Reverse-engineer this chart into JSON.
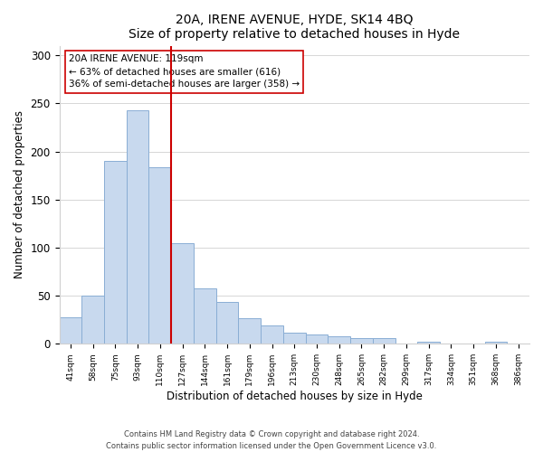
{
  "title": "20A, IRENE AVENUE, HYDE, SK14 4BQ",
  "subtitle": "Size of property relative to detached houses in Hyde",
  "xlabel": "Distribution of detached houses by size in Hyde",
  "ylabel": "Number of detached properties",
  "categories": [
    "41sqm",
    "58sqm",
    "75sqm",
    "93sqm",
    "110sqm",
    "127sqm",
    "144sqm",
    "161sqm",
    "179sqm",
    "196sqm",
    "213sqm",
    "230sqm",
    "248sqm",
    "265sqm",
    "282sqm",
    "299sqm",
    "317sqm",
    "334sqm",
    "351sqm",
    "368sqm",
    "386sqm"
  ],
  "values": [
    28,
    50,
    190,
    243,
    184,
    105,
    58,
    44,
    27,
    19,
    12,
    10,
    8,
    6,
    6,
    0,
    2,
    0,
    0,
    2,
    0
  ],
  "bar_color": "#c8d9ee",
  "bar_edge_color": "#8aaed4",
  "vline_x": 4.5,
  "vline_color": "#cc0000",
  "annotation_title": "20A IRENE AVENUE: 119sqm",
  "annotation_line1": "← 63% of detached houses are smaller (616)",
  "annotation_line2": "36% of semi-detached houses are larger (358) →",
  "annotation_box_color": "#ffffff",
  "annotation_box_edge": "#cc0000",
  "ylim": [
    0,
    310
  ],
  "yticks": [
    0,
    50,
    100,
    150,
    200,
    250,
    300
  ],
  "footnote1": "Contains HM Land Registry data © Crown copyright and database right 2024.",
  "footnote2": "Contains public sector information licensed under the Open Government Licence v3.0.",
  "background_color": "#ffffff",
  "grid_color": "#d0d0d0"
}
